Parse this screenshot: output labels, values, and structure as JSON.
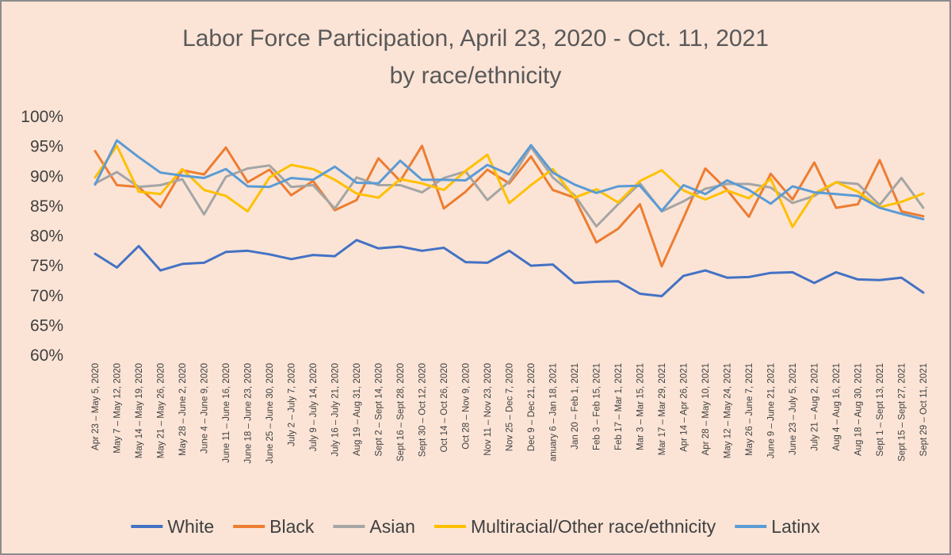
{
  "chart_data": {
    "type": "line",
    "title": "Labor Force Participation, April 23, 2020 - Oct. 11, 2021",
    "subtitle": "by race/ethnicity",
    "xlabel": "",
    "ylabel": "",
    "ylim": [
      60,
      100
    ],
    "yticks": [
      "100%",
      "95%",
      "90%",
      "85%",
      "80%",
      "75%",
      "70%",
      "65%",
      "60%"
    ],
    "grid": false,
    "legend_position": "bottom",
    "categories": [
      "Apr 23 – May 5, 2020",
      "May 7 – May 12, 2020",
      "May 14 – May 19, 2020",
      "May 21 – May 26, 2020",
      "May 28 – June 2, 2020",
      "June 4 – June 9, 2020",
      "June 11 – June 16, 2020",
      "June 18 – June 23, 2020",
      "June 25 – June 30, 2020",
      "July 2 – July 7, 2020",
      "July 9 – July 14, 2020",
      "July 16 – July 21, 2020",
      "Aug 19 – Aug 31, 2020",
      "Sept 2 – Sept 14, 2020",
      "Sept 16 – Sept 28, 2020",
      "Sept 30 – Oct 12, 2020",
      "Oct 14 – Oct 26, 2020",
      "Oct 28 – Nov 9, 2020",
      "Nov 11 – Nov 23, 2020",
      "Nov 25 – Dec 7, 2020",
      "Dec 9 – Dec 21, 2020",
      "anuary 6 – Jan 18, 2021",
      "Jan 20 – Feb 1, 2021",
      "Feb 3 – Feb 15, 2021",
      "Feb 17 – Mar 1, 2021",
      "Mar 3 – Mar 15, 2021",
      "Mar 17 – Mar 29, 2021",
      "Apr 14 – Apr 26, 2021",
      "Apr 28 – May 10, 2021",
      "May 12 – May 24, 2021",
      "May 26 – June 7, 2021",
      "June 9 – June 21, 2021",
      "June 23 – July 5, 2021",
      "July 21 – Aug 2, 2021",
      "Aug 4 – Aug 16, 2021",
      "Aug 18 – Aug 30, 2021",
      "Sept 1 – Sept 13, 2021",
      "Sept 15 – Sept 27, 2021",
      "Sept 29 – Oct 11, 2021"
    ],
    "series": [
      {
        "name": "White",
        "color": "#4472c4",
        "values": [
          77.0,
          74.7,
          78.3,
          74.2,
          75.3,
          75.5,
          77.3,
          77.5,
          76.9,
          76.1,
          76.8,
          76.6,
          79.3,
          77.9,
          78.2,
          77.5,
          78.0,
          75.6,
          75.5,
          77.5,
          75.0,
          75.2,
          72.1,
          72.3,
          72.4,
          70.3,
          69.9,
          73.3,
          74.2,
          73.0,
          73.1,
          73.8,
          73.9,
          72.1,
          73.9,
          72.7,
          72.6,
          73.0,
          70.5
        ]
      },
      {
        "name": "Black",
        "color": "#ed7d31",
        "values": [
          94.2,
          88.5,
          88.2,
          84.8,
          91.0,
          90.3,
          94.8,
          89.0,
          91.1,
          86.8,
          89.2,
          84.3,
          86.0,
          93.0,
          89.2,
          95.1,
          84.6,
          87.4,
          91.1,
          88.8,
          93.3,
          87.7,
          86.4,
          78.9,
          81.2,
          85.3,
          74.9,
          83.0,
          91.3,
          87.7,
          83.2,
          90.4,
          86.1,
          92.3,
          84.7,
          85.3,
          92.7,
          84.1,
          83.3
        ]
      },
      {
        "name": "Asian",
        "color": "#a5a5a5",
        "values": [
          88.8,
          90.7,
          88.2,
          88.5,
          89.5,
          83.6,
          89.9,
          91.3,
          91.8,
          88.2,
          88.5,
          84.6,
          89.8,
          88.5,
          88.5,
          87.3,
          89.7,
          90.8,
          86.0,
          89.1,
          94.9,
          89.8,
          86.8,
          81.6,
          85.3,
          88.8,
          84.1,
          85.8,
          87.9,
          88.7,
          88.7,
          88.1,
          85.5,
          86.7,
          89.0,
          88.7,
          85.2,
          89.7,
          84.7
        ]
      },
      {
        "name": "Multiracial/Other race/ethnicity",
        "color": "#ffc000",
        "values": [
          89.8,
          95.1,
          87.4,
          87.0,
          91.2,
          87.7,
          86.7,
          84.1,
          89.8,
          91.9,
          91.2,
          89.4,
          87.1,
          86.4,
          89.5,
          88.8,
          87.7,
          90.9,
          93.6,
          85.5,
          88.5,
          91.2,
          86.4,
          87.8,
          85.6,
          89.2,
          91.0,
          87.6,
          86.1,
          87.6,
          86.3,
          89.6,
          81.5,
          87.1,
          89.0,
          87.4,
          84.8,
          85.7,
          87.1
        ]
      },
      {
        "name": "Latinx",
        "color": "#5b9bd5",
        "values": [
          88.6,
          96.0,
          93.2,
          90.6,
          90.1,
          89.7,
          91.2,
          88.3,
          88.2,
          89.7,
          89.4,
          91.6,
          88.9,
          88.8,
          92.6,
          89.4,
          89.4,
          89.3,
          91.9,
          90.3,
          95.2,
          90.6,
          88.6,
          87.2,
          88.3,
          88.4,
          84.2,
          88.5,
          87.0,
          89.3,
          87.7,
          85.4,
          88.3,
          87.3,
          87.0,
          86.7,
          84.7,
          83.7,
          82.8
        ]
      }
    ]
  }
}
